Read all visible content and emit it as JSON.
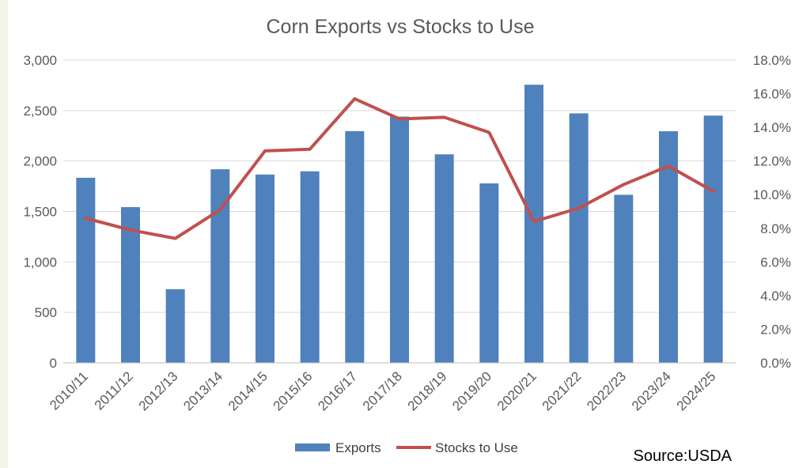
{
  "chart_data": {
    "type": "bar",
    "title": "Corn Exports vs Stocks to Use",
    "categories": [
      "2010/11",
      "2011/12",
      "2012/13",
      "2013/14",
      "2014/15",
      "2015/16",
      "2016/17",
      "2017/18",
      "2018/19",
      "2019/20",
      "2020/21",
      "2021/22",
      "2022/23",
      "2023/24",
      "2024/25"
    ],
    "series": [
      {
        "name": "Exports",
        "type": "bar",
        "axis": "left",
        "color": "#4f81bd",
        "values": [
          1834,
          1543,
          730,
          1918,
          1866,
          1898,
          2296,
          2440,
          2066,
          1778,
          2756,
          2472,
          1665,
          2295,
          2450
        ]
      },
      {
        "name": "Stocks to Use",
        "type": "line",
        "axis": "right",
        "color": "#c0504d",
        "values": [
          8.6,
          7.9,
          7.4,
          9.1,
          12.6,
          12.7,
          15.7,
          14.5,
          14.6,
          13.7,
          8.4,
          9.2,
          10.6,
          11.7,
          10.2
        ]
      }
    ],
    "y_left": {
      "ylim": [
        0,
        3000
      ],
      "ticks": [
        "0",
        "500",
        "1,000",
        "1,500",
        "2,000",
        "2,500",
        "3,000"
      ]
    },
    "y_right": {
      "ylim": [
        0,
        18
      ],
      "ticks": [
        "0.0%",
        "2.0%",
        "4.0%",
        "6.0%",
        "8.0%",
        "10.0%",
        "12.0%",
        "14.0%",
        "16.0%",
        "18.0%"
      ]
    },
    "grid": true,
    "legend": "bottom"
  },
  "source": "Source:USDA"
}
